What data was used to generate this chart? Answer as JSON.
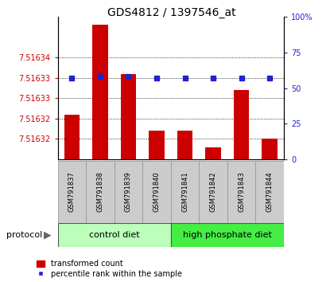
{
  "title": "GDS4812 / 1397546_at",
  "samples": [
    "GSM791837",
    "GSM791838",
    "GSM791839",
    "GSM791840",
    "GSM791841",
    "GSM791842",
    "GSM791843",
    "GSM791844"
  ],
  "bar_tops": [
    7.516326,
    7.516348,
    7.516336,
    7.516322,
    7.516322,
    7.516318,
    7.516332,
    7.51632
  ],
  "bar_bottom": 7.516315,
  "percentile_values": [
    57,
    58,
    58,
    57,
    57,
    57,
    57,
    57
  ],
  "ylim_left": [
    7.516315,
    7.51635
  ],
  "ytick_positions": [
    7.51632,
    7.516325,
    7.51633,
    7.516335,
    7.51634
  ],
  "ytick_labels": [
    "7.51632",
    "7.51632",
    "7.51633",
    "7.51633",
    "7.51634"
  ],
  "ylim_right": [
    0,
    100
  ],
  "yticks_right": [
    0,
    25,
    50,
    75,
    100
  ],
  "ytick_right_labels": [
    "0",
    "25",
    "50",
    "75",
    "100%"
  ],
  "bar_color": "#CC0000",
  "dot_color": "#2222CC",
  "group1_label": "control diet",
  "group2_label": "high phosphate diet",
  "group1_n": 4,
  "group2_n": 4,
  "group1_color": "#BBFFBB",
  "group2_color": "#44EE44",
  "protocol_label": "protocol",
  "legend1": "transformed count",
  "legend2": "percentile rank within the sample",
  "bar_width": 0.55,
  "title_fontsize": 10,
  "tick_fontsize": 7,
  "label_fontsize": 8,
  "sample_box_color": "#CCCCCC",
  "sample_box_edge": "#999999"
}
